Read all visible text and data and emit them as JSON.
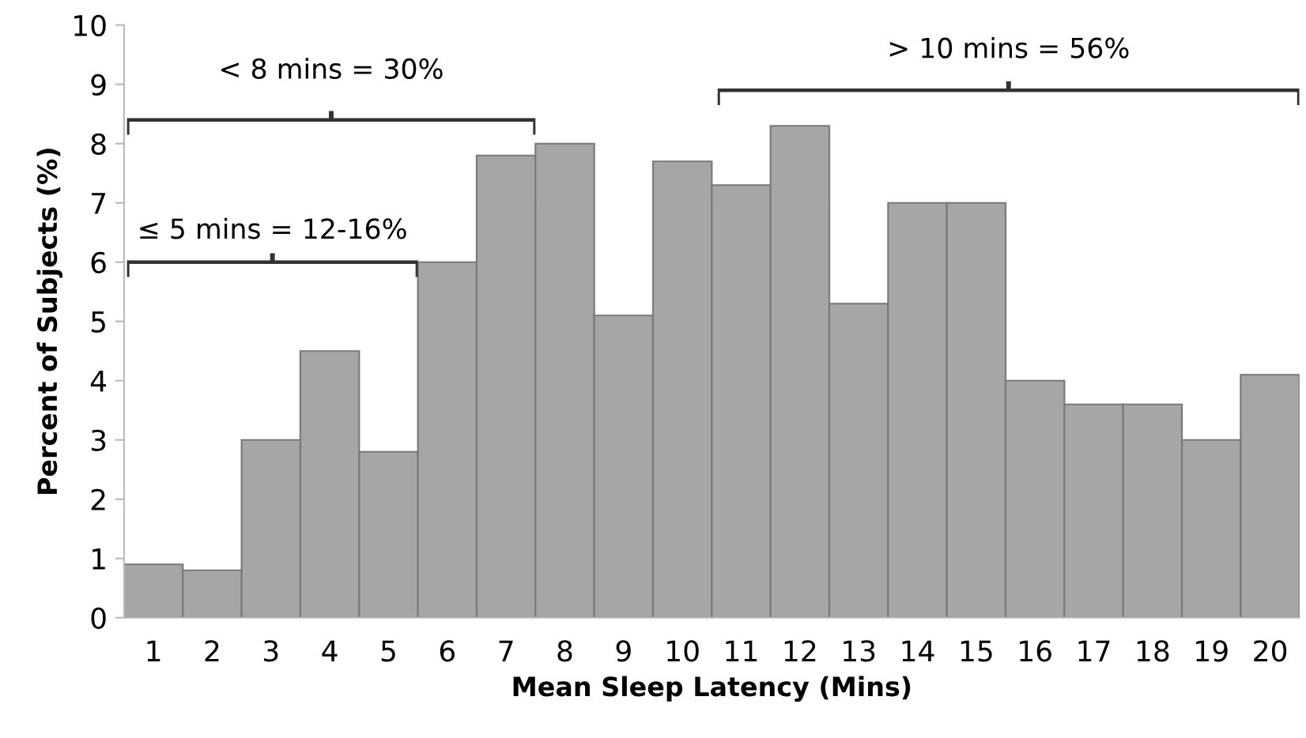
{
  "chart_data": {
    "type": "bar",
    "xlabel": "Mean Sleep Latency (Mins)",
    "ylabel": "Percent of Subjects (%)",
    "categories": [
      "1",
      "2",
      "3",
      "4",
      "5",
      "6",
      "7",
      "8",
      "9",
      "10",
      "11",
      "12",
      "13",
      "14",
      "15",
      "16",
      "17",
      "18",
      "19",
      "20"
    ],
    "values": [
      0.9,
      0.8,
      3.0,
      4.5,
      2.8,
      6.0,
      7.8,
      8.0,
      5.1,
      7.7,
      7.3,
      8.3,
      5.3,
      7.0,
      7.0,
      4.0,
      3.6,
      3.6,
      3.0,
      4.1
    ],
    "color": "#a6a6a6",
    "ylim": [
      0,
      10
    ],
    "yticks": [
      0,
      1,
      2,
      3,
      4,
      5,
      6,
      7,
      8,
      9,
      10
    ],
    "grid": false,
    "annotations": [
      "< 8 mins = 30%",
      "≤ 5 mins = 12-16%",
      "> 10 mins = 56%"
    ]
  }
}
